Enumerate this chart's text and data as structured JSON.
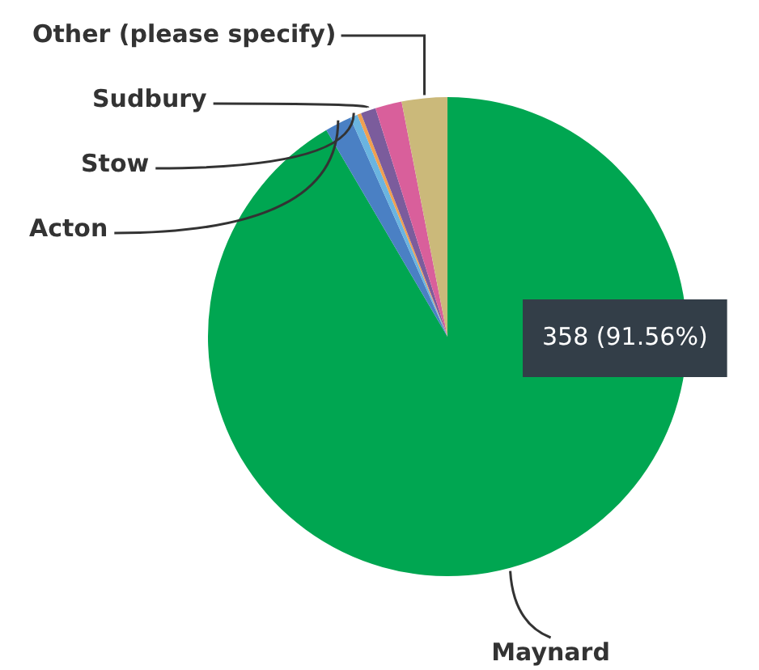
{
  "chart_data": {
    "type": "pie",
    "categories": [
      "Maynard",
      "Acton",
      "Stow",
      null,
      "Sudbury",
      null,
      "Other (please specify)"
    ],
    "values": [
      91.56,
      1.79,
      0.51,
      0.26,
      1.02,
      1.79,
      3.07
    ],
    "colors": [
      "#00a651",
      "#4a80c4",
      "#6ab4e0",
      "#f0a050",
      "#7b5c9c",
      "#d95f9b",
      "#cbb97a"
    ],
    "annotations": [
      "358 (91.56%)"
    ]
  }
}
